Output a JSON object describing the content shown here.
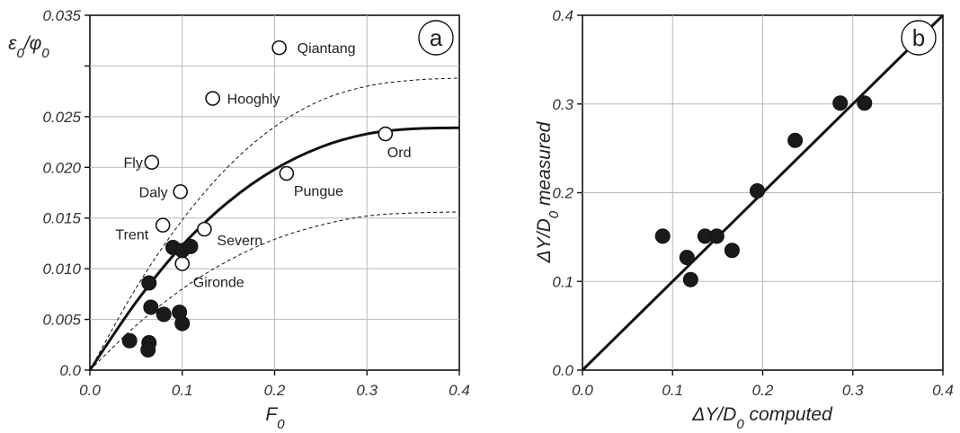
{
  "chart_data": [
    {
      "type": "scatter",
      "panel": "a",
      "xlabel": "F_0",
      "ylabel": "ε_0/φ_0",
      "xlim": [
        0.0,
        0.4
      ],
      "ylim": [
        0.0,
        0.035
      ],
      "x_ticks": [
        0.0,
        0.1,
        0.2,
        0.3,
        0.4
      ],
      "x_tick_labels": [
        "0.0",
        "0.1",
        "0.2",
        "0.3",
        "0.4"
      ],
      "y_ticks": [
        0.0,
        0.005,
        0.01,
        0.015,
        0.02,
        0.025,
        0.03,
        0.035
      ],
      "y_tick_labels": [
        "0.0",
        "0.005",
        "0.010",
        "0.015",
        "0.020",
        "0.025",
        "",
        "0.035"
      ],
      "grid": true,
      "series": [
        {
          "marker": "open-circle",
          "points": [
            {
              "x": 0.205,
              "y": 0.0318,
              "label": "Qiantang"
            },
            {
              "x": 0.133,
              "y": 0.0268,
              "label": "Hooghly"
            },
            {
              "x": 0.067,
              "y": 0.0205,
              "label": "Fly"
            },
            {
              "x": 0.098,
              "y": 0.0176,
              "label": "Daly"
            },
            {
              "x": 0.079,
              "y": 0.0143,
              "label": "Trent"
            },
            {
              "x": 0.124,
              "y": 0.0139,
              "label": "Severn"
            },
            {
              "x": 0.1,
              "y": 0.0105,
              "label": "Gironde"
            },
            {
              "x": 0.213,
              "y": 0.0194,
              "label": "Pungue"
            },
            {
              "x": 0.32,
              "y": 0.0233,
              "label": "Ord"
            }
          ]
        },
        {
          "marker": "filled-circle",
          "points": [
            {
              "x": 0.09,
              "y": 0.0121
            },
            {
              "x": 0.1,
              "y": 0.0118
            },
            {
              "x": 0.109,
              "y": 0.0122
            },
            {
              "x": 0.064,
              "y": 0.0086
            },
            {
              "x": 0.066,
              "y": 0.0062
            },
            {
              "x": 0.08,
              "y": 0.0055
            },
            {
              "x": 0.097,
              "y": 0.0057
            },
            {
              "x": 0.1,
              "y": 0.0046
            },
            {
              "x": 0.043,
              "y": 0.0029
            },
            {
              "x": 0.064,
              "y": 0.0027
            },
            {
              "x": 0.063,
              "y": 0.002
            }
          ]
        }
      ],
      "curves": [
        {
          "style": "solid-thick",
          "x": [
            0.0,
            0.05,
            0.1,
            0.15,
            0.2,
            0.25,
            0.3,
            0.35,
            0.4
          ],
          "y": [
            0.0,
            0.0067,
            0.0123,
            0.0166,
            0.0198,
            0.022,
            0.0233,
            0.0238,
            0.0239
          ]
        },
        {
          "style": "dashed",
          "x": [
            0.0,
            0.05,
            0.1,
            0.15,
            0.2,
            0.25,
            0.3,
            0.35,
            0.4
          ],
          "y": [
            0.0,
            0.0081,
            0.0148,
            0.0201,
            0.024,
            0.0266,
            0.028,
            0.0286,
            0.0288
          ]
        },
        {
          "style": "dashed",
          "x": [
            0.0,
            0.05,
            0.1,
            0.15,
            0.2,
            0.25,
            0.3,
            0.35,
            0.4
          ],
          "y": [
            0.0,
            0.0044,
            0.008,
            0.0108,
            0.0129,
            0.0143,
            0.0152,
            0.0155,
            0.0156
          ]
        }
      ]
    },
    {
      "type": "scatter",
      "panel": "b",
      "xlabel": "ΔY/D_0 computed",
      "ylabel": "ΔY/D_0 measured",
      "xlim": [
        0.0,
        0.4
      ],
      "ylim": [
        0.0,
        0.4
      ],
      "x_ticks": [
        0.0,
        0.1,
        0.2,
        0.3,
        0.4
      ],
      "x_tick_labels": [
        "0.0",
        "0.1",
        "0.2",
        "0.3",
        "0.4"
      ],
      "y_ticks": [
        0.0,
        0.1,
        0.2,
        0.3,
        0.4
      ],
      "y_tick_labels": [
        "0.0",
        "0.1",
        "0.2",
        "0.3",
        "0.4"
      ],
      "grid": true,
      "series": [
        {
          "marker": "filled-circle",
          "points": [
            {
              "x": 0.089,
              "y": 0.151
            },
            {
              "x": 0.116,
              "y": 0.127
            },
            {
              "x": 0.12,
              "y": 0.102
            },
            {
              "x": 0.136,
              "y": 0.151
            },
            {
              "x": 0.149,
              "y": 0.151
            },
            {
              "x": 0.166,
              "y": 0.135
            },
            {
              "x": 0.194,
              "y": 0.202
            },
            {
              "x": 0.236,
              "y": 0.259
            },
            {
              "x": 0.286,
              "y": 0.301
            },
            {
              "x": 0.313,
              "y": 0.301
            }
          ]
        }
      ],
      "curves": [
        {
          "style": "solid-thick",
          "x": [
            0.0,
            0.4
          ],
          "y": [
            0.0,
            0.4
          ]
        }
      ]
    }
  ]
}
